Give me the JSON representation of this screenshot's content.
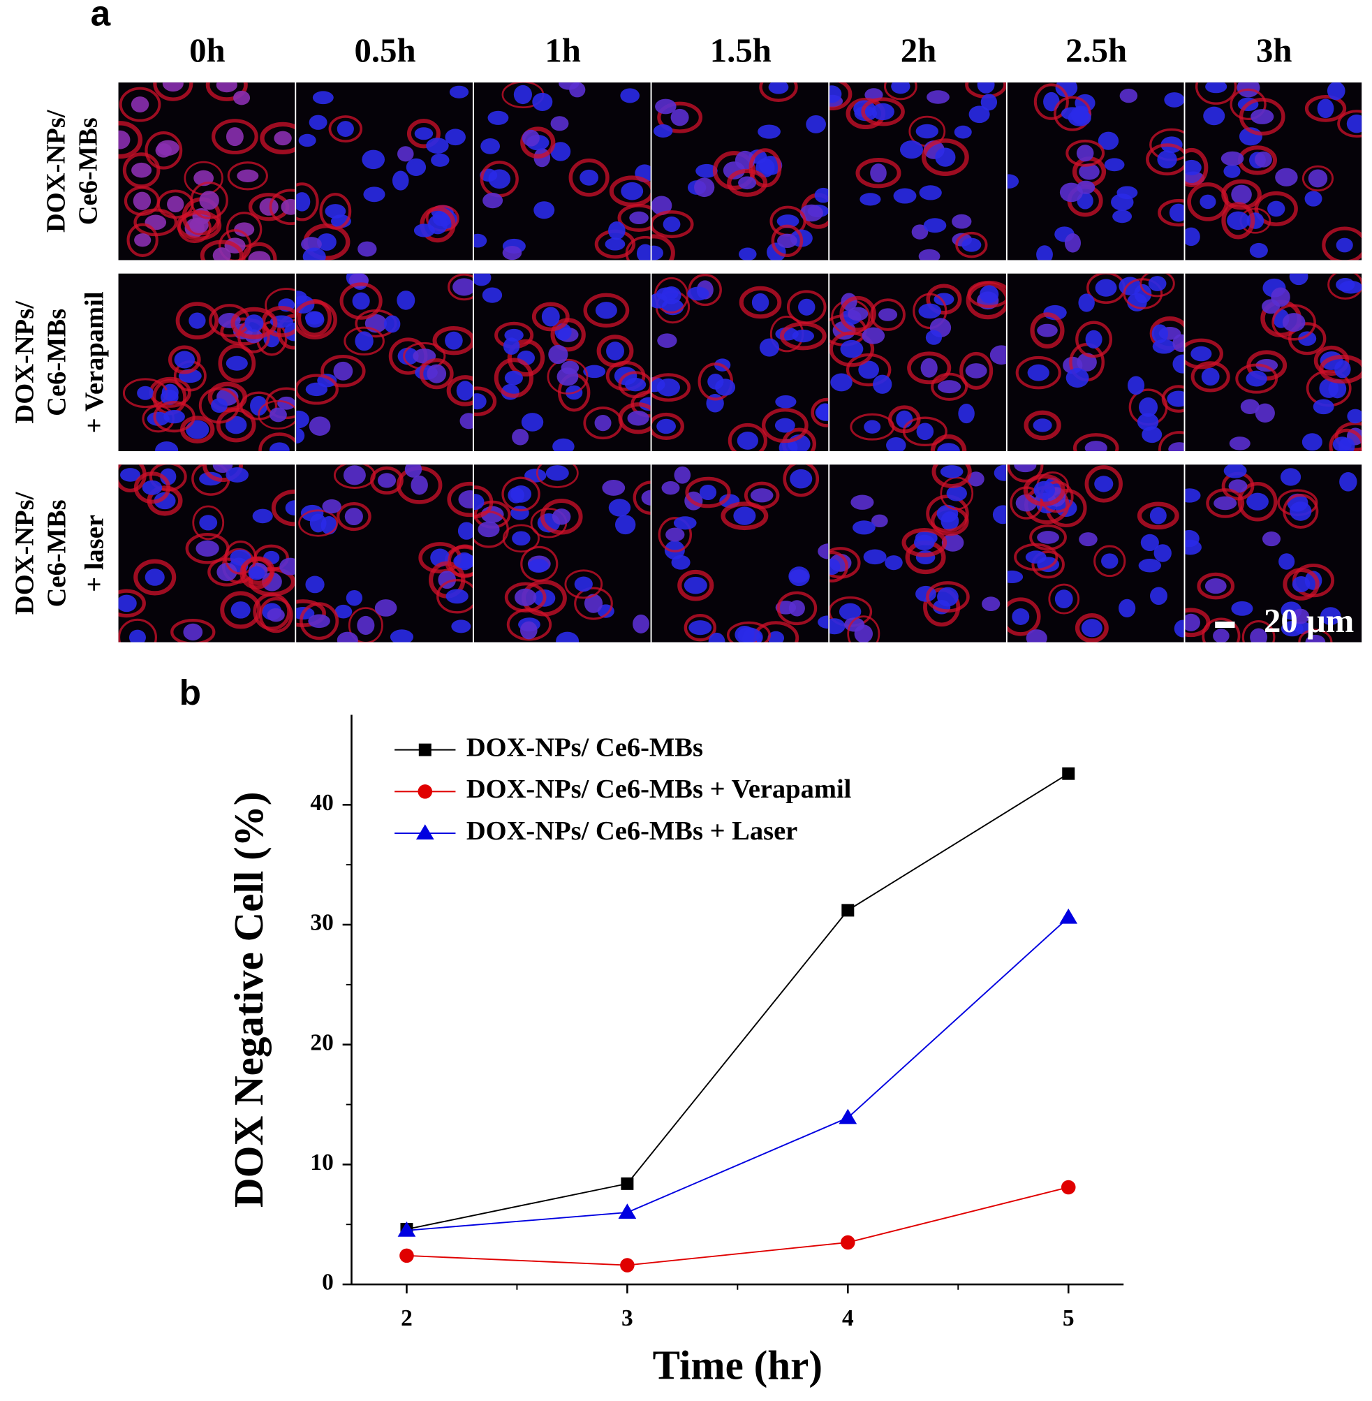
{
  "panel_labels": [
    "a",
    "b"
  ],
  "panel_a": {
    "columns": [
      "0h",
      "0.5h",
      "1h",
      "1.5h",
      "2h",
      "2.5h",
      "3h"
    ],
    "rows": [
      [
        "DOX-NPs/",
        "Ce6-MBs"
      ],
      [
        "DOX-NPs/",
        "Ce6-MBs",
        "+ Verapamil"
      ],
      [
        "DOX-NPs/",
        "Ce6-MBs",
        "+ laser"
      ]
    ],
    "scale_bar": "20 μm"
  },
  "chart_data": {
    "type": "line",
    "x_label": "Time (hr)",
    "y_label": "DOX Negative Cell (%)",
    "x": [
      2,
      3,
      4,
      5
    ],
    "series": [
      {
        "name": "DOX-NPs/ Ce6-MBs",
        "color": "#000000",
        "marker": "square",
        "values": [
          4.6,
          8.4,
          31.2,
          42.6
        ]
      },
      {
        "name": "DOX-NPs/ Ce6-MBs + Verapamil",
        "color": "#e00000",
        "marker": "circle",
        "values": [
          2.4,
          1.6,
          3.5,
          8.1
        ]
      },
      {
        "name": "DOX-NPs/ Ce6-MBs + Laser",
        "color": "#0000e0",
        "marker": "triangle",
        "values": [
          4.5,
          6.0,
          13.9,
          30.6
        ]
      }
    ],
    "xlim": [
      1.75,
      5.25
    ],
    "ylim": [
      0,
      47.5
    ],
    "xticks": [
      2,
      3,
      4,
      5
    ],
    "yticks": [
      0,
      10,
      20,
      30,
      40
    ],
    "legend": "upper left"
  }
}
